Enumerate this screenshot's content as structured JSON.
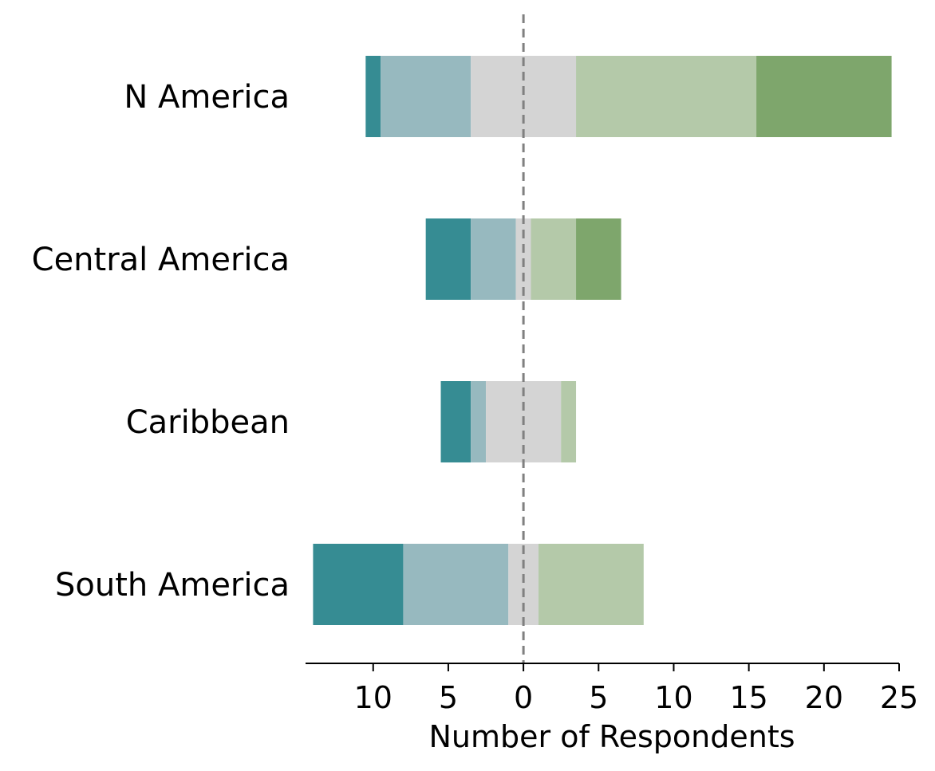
{
  "chart_data": {
    "type": "bar",
    "orientation": "horizontal",
    "stacked": "diverging",
    "title": "",
    "xlabel": "Number of Respondents",
    "ylabel": "",
    "xlim": [
      -14.5,
      25
    ],
    "x_ticks": [
      -10,
      -5,
      0,
      5,
      10,
      15,
      20,
      25
    ],
    "x_tick_labels": [
      "10",
      "5",
      "0",
      "5",
      "10",
      "15",
      "20",
      "25"
    ],
    "reference_line": {
      "x": 0,
      "style": "dashed",
      "color": "#808080"
    },
    "grid": false,
    "legend": "none",
    "categories": [
      "N America",
      "Central America",
      "Caribbean",
      "South America"
    ],
    "segment_colors": [
      "#368c93",
      "#97b9bf",
      "#d4d4d4",
      "#b4c9a9",
      "#7ea66c"
    ],
    "segments": [
      [
        [
          -10.5,
          -9.5
        ],
        [
          -9.5,
          -3.5
        ],
        [
          -3.5,
          3.5
        ],
        [
          3.5,
          15.5
        ],
        [
          15.5,
          24.5
        ]
      ],
      [
        [
          -6.5,
          -3.5
        ],
        [
          -3.5,
          -0.5
        ],
        [
          -0.5,
          0.5
        ],
        [
          0.5,
          3.5
        ],
        [
          3.5,
          6.5
        ]
      ],
      [
        [
          -5.5,
          -3.5
        ],
        [
          -3.5,
          -2.5
        ],
        [
          -2.5,
          2.5
        ],
        [
          2.5,
          3.5
        ],
        null
      ],
      [
        [
          -14,
          -8
        ],
        [
          -8,
          -1
        ],
        [
          -1,
          1
        ],
        [
          1,
          8
        ],
        null
      ]
    ]
  }
}
